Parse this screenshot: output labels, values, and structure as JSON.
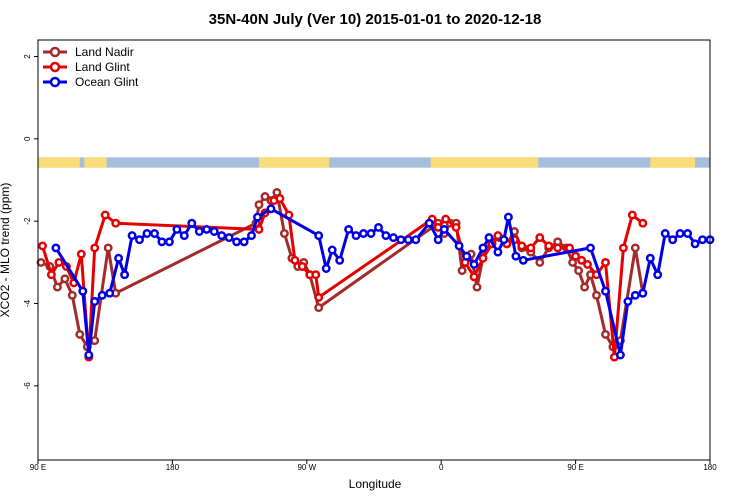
{
  "chart_data": {
    "type": "line",
    "title": "35N-40N July (Ver 10)   2015-01-01 to 2020-12-18",
    "xlabel": "Longitude",
    "ylabel": "XCO2 - MLO trend (ppm)",
    "x_ticks": [
      {
        "value": 0,
        "label": "90 E"
      },
      {
        "value": 90,
        "label": "180"
      },
      {
        "value": 180,
        "label": "90 W"
      },
      {
        "value": 270,
        "label": "0"
      },
      {
        "value": 360,
        "label": "90 E"
      },
      {
        "value": 450,
        "label": "180"
      }
    ],
    "y_ticks": [
      2,
      0,
      -2,
      -4,
      -6
    ],
    "xlim": [
      0,
      450
    ],
    "ylim": [
      -7.8,
      2.4
    ],
    "grid": false,
    "legend_position": "top-left",
    "land_mask": {
      "y_range": [
        -0.45,
        -0.7
      ],
      "ocean_color": "#a4bedc",
      "land_color": "#fadc78",
      "land_segments": [
        [
          0,
          28
        ],
        [
          31,
          46
        ],
        [
          148,
          195
        ],
        [
          263,
          335
        ],
        [
          410,
          440
        ]
      ]
    },
    "series": [
      {
        "name": "Land Nadir",
        "color": "#a52a2a",
        "points": [
          [
            2,
            -3.0
          ],
          [
            8,
            -3.1
          ],
          [
            13,
            -3.6
          ],
          [
            18,
            -3.4
          ],
          [
            23,
            -3.8
          ],
          [
            28,
            -4.75
          ],
          [
            33,
            -5.05
          ],
          [
            38,
            -4.9
          ],
          [
            47,
            -2.65
          ],
          [
            52,
            -3.75
          ],
          [
            146,
            -2.05
          ],
          [
            148,
            -1.6
          ],
          [
            152,
            -1.4
          ],
          [
            156,
            -1.5
          ],
          [
            160,
            -1.3
          ],
          [
            165,
            -2.3
          ],
          [
            170,
            -2.9
          ],
          [
            174,
            -3.1
          ],
          [
            178,
            -3.0
          ],
          [
            182,
            -3.3
          ],
          [
            188,
            -4.1
          ],
          [
            268,
            -2.05
          ],
          [
            272,
            -2.3
          ],
          [
            276,
            -2.05
          ],
          [
            280,
            -2.05
          ],
          [
            284,
            -3.2
          ],
          [
            290,
            -2.8
          ],
          [
            294,
            -3.6
          ],
          [
            299,
            -2.7
          ],
          [
            304,
            -2.5
          ],
          [
            309,
            -2.4
          ],
          [
            314,
            -2.55
          ],
          [
            319,
            -2.25
          ],
          [
            324,
            -2.65
          ],
          [
            330,
            -2.75
          ],
          [
            336,
            -3.0
          ],
          [
            342,
            -2.65
          ],
          [
            348,
            -2.5
          ],
          [
            354,
            -2.65
          ],
          [
            358,
            -3.0
          ],
          [
            362,
            -3.2
          ],
          [
            366,
            -3.6
          ],
          [
            370,
            -3.3
          ],
          [
            374,
            -3.8
          ],
          [
            380,
            -4.75
          ],
          [
            385,
            -5.05
          ],
          [
            390,
            -4.9
          ],
          [
            400,
            -2.65
          ],
          [
            405,
            -3.75
          ]
        ]
      },
      {
        "name": "Land Glint",
        "color": "#e60000",
        "points": [
          [
            3,
            -2.6
          ],
          [
            9,
            -3.3
          ],
          [
            14,
            -3.0
          ],
          [
            19,
            -3.1
          ],
          [
            24,
            -3.5
          ],
          [
            29,
            -2.8
          ],
          [
            34,
            -5.3
          ],
          [
            38,
            -2.65
          ],
          [
            45,
            -1.85
          ],
          [
            52,
            -2.05
          ],
          [
            148,
            -2.2
          ],
          [
            152,
            -1.8
          ],
          [
            158,
            -1.5
          ],
          [
            162,
            -1.45
          ],
          [
            168,
            -1.85
          ],
          [
            172,
            -2.95
          ],
          [
            177,
            -3.1
          ],
          [
            182,
            -3.3
          ],
          [
            186,
            -3.3
          ],
          [
            188,
            -3.85
          ],
          [
            264,
            -1.95
          ],
          [
            268,
            -2.15
          ],
          [
            273,
            -1.95
          ],
          [
            280,
            -2.15
          ],
          [
            286,
            -3.0
          ],
          [
            292,
            -3.35
          ],
          [
            298,
            -2.9
          ],
          [
            304,
            -2.55
          ],
          [
            308,
            -2.35
          ],
          [
            314,
            -2.55
          ],
          [
            319,
            -2.45
          ],
          [
            324,
            -2.6
          ],
          [
            330,
            -2.65
          ],
          [
            336,
            -2.4
          ],
          [
            342,
            -2.6
          ],
          [
            348,
            -2.65
          ],
          [
            356,
            -2.65
          ],
          [
            360,
            -2.85
          ],
          [
            364,
            -2.95
          ],
          [
            368,
            -3.05
          ],
          [
            374,
            -3.3
          ],
          [
            380,
            -3.0
          ],
          [
            386,
            -5.3
          ],
          [
            392,
            -2.65
          ],
          [
            398,
            -1.85
          ],
          [
            405,
            -2.05
          ]
        ]
      },
      {
        "name": "Ocean Glint",
        "color": "#0000e6",
        "points": [
          [
            12,
            -2.65
          ],
          [
            30,
            -3.7
          ],
          [
            34,
            -5.25
          ],
          [
            38,
            -3.95
          ],
          [
            43,
            -3.8
          ],
          [
            48,
            -3.75
          ],
          [
            54,
            -2.9
          ],
          [
            58,
            -3.3
          ],
          [
            63,
            -2.35
          ],
          [
            68,
            -2.45
          ],
          [
            73,
            -2.3
          ],
          [
            78,
            -2.3
          ],
          [
            83,
            -2.5
          ],
          [
            88,
            -2.5
          ],
          [
            93,
            -2.2
          ],
          [
            98,
            -2.35
          ],
          [
            103,
            -2.05
          ],
          [
            108,
            -2.25
          ],
          [
            113,
            -2.2
          ],
          [
            118,
            -2.25
          ],
          [
            123,
            -2.35
          ],
          [
            128,
            -2.4
          ],
          [
            133,
            -2.5
          ],
          [
            138,
            -2.5
          ],
          [
            143,
            -2.35
          ],
          [
            147,
            -1.9
          ],
          [
            156,
            -1.7
          ],
          [
            188,
            -2.35
          ],
          [
            193,
            -3.15
          ],
          [
            197,
            -2.7
          ],
          [
            202,
            -2.95
          ],
          [
            208,
            -2.2
          ],
          [
            213,
            -2.35
          ],
          [
            218,
            -2.3
          ],
          [
            223,
            -2.3
          ],
          [
            228,
            -2.15
          ],
          [
            233,
            -2.35
          ],
          [
            238,
            -2.4
          ],
          [
            243,
            -2.45
          ],
          [
            248,
            -2.45
          ],
          [
            253,
            -2.45
          ],
          [
            262,
            -2.05
          ],
          [
            268,
            -2.45
          ],
          [
            272,
            -2.2
          ],
          [
            282,
            -2.6
          ],
          [
            287,
            -2.85
          ],
          [
            292,
            -3.05
          ],
          [
            298,
            -2.65
          ],
          [
            302,
            -2.4
          ],
          [
            308,
            -2.75
          ],
          [
            312,
            -2.45
          ],
          [
            315,
            -1.9
          ],
          [
            320,
            -2.85
          ],
          [
            325,
            -2.95
          ],
          [
            370,
            -2.65
          ],
          [
            380,
            -3.7
          ],
          [
            390,
            -5.25
          ],
          [
            395,
            -3.95
          ],
          [
            400,
            -3.8
          ],
          [
            405,
            -3.75
          ],
          [
            410,
            -2.9
          ],
          [
            415,
            -3.3
          ],
          [
            420,
            -2.3
          ],
          [
            425,
            -2.45
          ],
          [
            430,
            -2.3
          ],
          [
            435,
            -2.3
          ],
          [
            440,
            -2.55
          ],
          [
            445,
            -2.45
          ],
          [
            450,
            -2.45
          ]
        ]
      }
    ]
  }
}
